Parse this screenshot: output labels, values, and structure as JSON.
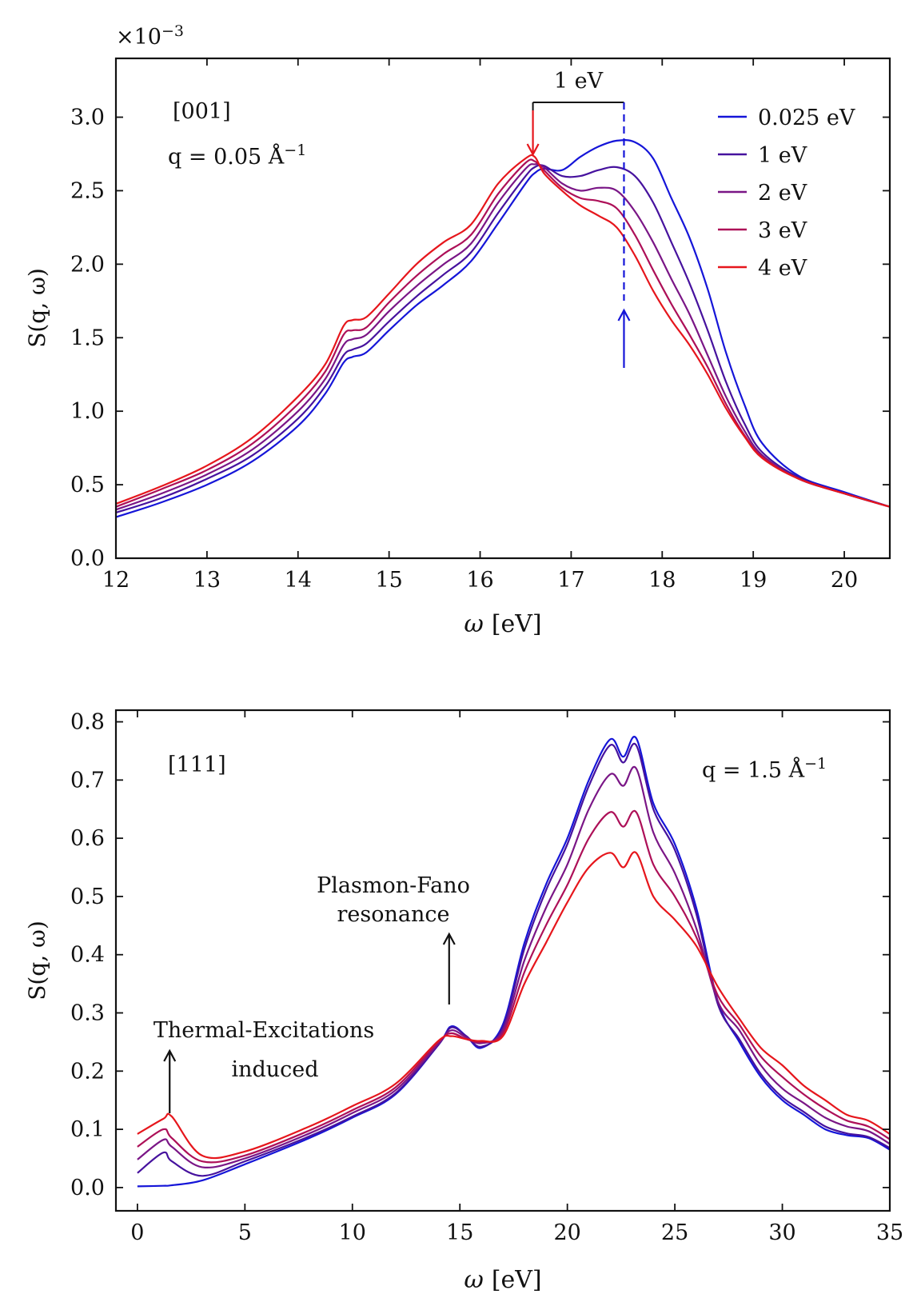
{
  "chart_data": [
    {
      "type": "line",
      "panel": "top",
      "annotation_direction": "[001]",
      "annotation_q": "q = 0.05 Å",
      "annotation_q_exp": "−1",
      "multiplier_base": "×10",
      "multiplier_exp": "−3",
      "shift_label": "1 eV",
      "xlabel_var": "ω",
      "xlabel_unit": "[eV]",
      "ylabel": "S(q, ω)",
      "xlim": [
        12,
        20.5
      ],
      "ylim": [
        0,
        3.4
      ],
      "xticks": [
        12,
        13,
        14,
        15,
        16,
        17,
        18,
        19,
        20
      ],
      "xtick_labels": [
        "12",
        "13",
        "14",
        "15",
        "16",
        "17",
        "18",
        "19",
        "20"
      ],
      "yticks": [
        0,
        0.5,
        1.0,
        1.5,
        2.0,
        2.5,
        3.0
      ],
      "ytick_labels": [
        "0.0",
        "0.5",
        "1.0",
        "1.5",
        "2.0",
        "2.5",
        "3.0"
      ],
      "legend": [
        "0.025 eV",
        "1 eV",
        "2 eV",
        "3 eV",
        "4 eV"
      ],
      "legend_position": "top-right",
      "arrow_red_x": 16.58,
      "arrow_blue_x": 17.58,
      "x": [
        12.0,
        12.5,
        13.0,
        13.5,
        14.0,
        14.3,
        14.5,
        14.6,
        14.75,
        15.0,
        15.3,
        15.6,
        15.9,
        16.2,
        16.5,
        16.6,
        16.7,
        16.9,
        17.1,
        17.3,
        17.5,
        17.7,
        17.9,
        18.1,
        18.3,
        18.5,
        18.7,
        18.9,
        19.1,
        19.5,
        20.0,
        20.5
      ],
      "series": [
        {
          "name": "0.025 eV",
          "color": "#1515d8",
          "values": [
            0.28,
            0.38,
            0.5,
            0.66,
            0.9,
            1.12,
            1.33,
            1.37,
            1.4,
            1.55,
            1.72,
            1.86,
            2.02,
            2.28,
            2.55,
            2.62,
            2.65,
            2.64,
            2.73,
            2.8,
            2.84,
            2.83,
            2.72,
            2.45,
            2.18,
            1.83,
            1.4,
            1.05,
            0.78,
            0.56,
            0.45,
            0.35
          ]
        },
        {
          "name": "1 eV",
          "color": "#46129e",
          "values": [
            0.31,
            0.41,
            0.54,
            0.7,
            0.95,
            1.17,
            1.38,
            1.42,
            1.46,
            1.61,
            1.78,
            1.93,
            2.08,
            2.35,
            2.6,
            2.66,
            2.67,
            2.6,
            2.6,
            2.64,
            2.66,
            2.6,
            2.42,
            2.15,
            1.87,
            1.55,
            1.2,
            0.92,
            0.72,
            0.55,
            0.44,
            0.35
          ]
        },
        {
          "name": "2 eV",
          "color": "#7a1686",
          "values": [
            0.33,
            0.44,
            0.57,
            0.74,
            1.0,
            1.22,
            1.45,
            1.49,
            1.52,
            1.68,
            1.85,
            2.0,
            2.14,
            2.42,
            2.65,
            2.68,
            2.66,
            2.55,
            2.5,
            2.52,
            2.5,
            2.36,
            2.15,
            1.9,
            1.66,
            1.38,
            1.1,
            0.87,
            0.7,
            0.54,
            0.44,
            0.35
          ]
        },
        {
          "name": "3 eV",
          "color": "#ad1058",
          "values": [
            0.35,
            0.47,
            0.6,
            0.78,
            1.05,
            1.27,
            1.52,
            1.55,
            1.57,
            1.74,
            1.92,
            2.07,
            2.2,
            2.48,
            2.69,
            2.7,
            2.64,
            2.52,
            2.45,
            2.43,
            2.38,
            2.2,
            1.96,
            1.73,
            1.52,
            1.3,
            1.05,
            0.84,
            0.69,
            0.54,
            0.44,
            0.35
          ]
        },
        {
          "name": "4 eV",
          "color": "#e6161c",
          "values": [
            0.37,
            0.49,
            0.63,
            0.82,
            1.1,
            1.32,
            1.58,
            1.62,
            1.64,
            1.8,
            2.0,
            2.15,
            2.27,
            2.55,
            2.72,
            2.73,
            2.62,
            2.5,
            2.4,
            2.33,
            2.25,
            2.06,
            1.82,
            1.62,
            1.45,
            1.25,
            1.02,
            0.83,
            0.68,
            0.54,
            0.44,
            0.35
          ]
        }
      ]
    },
    {
      "type": "line",
      "panel": "bottom",
      "annotation_direction": "[111]",
      "annotation_q": "q = 1.5 Å",
      "annotation_q_exp": "−1",
      "annotation_plasmon_line1": "Plasmon-Fano",
      "annotation_plasmon_line2": "resonance",
      "annotation_thermal_line1": "Thermal-Excitations",
      "annotation_thermal_line2": "induced",
      "xlabel_var": "ω",
      "xlabel_unit": "[eV]",
      "ylabel": "S(q, ω)",
      "xlim": [
        -1,
        35
      ],
      "ylim": [
        -0.04,
        0.82
      ],
      "xticks": [
        0,
        5,
        10,
        15,
        20,
        25,
        30,
        35
      ],
      "xtick_labels": [
        "0",
        "5",
        "10",
        "15",
        "20",
        "25",
        "30",
        "35"
      ],
      "yticks": [
        0.0,
        0.1,
        0.2,
        0.3,
        0.4,
        0.5,
        0.6,
        0.7,
        0.8
      ],
      "ytick_labels": [
        "0.0",
        "0.1",
        "0.2",
        "0.3",
        "0.4",
        "0.5",
        "0.6",
        "0.7",
        "0.8"
      ],
      "arrow_plasmon_x": 14.5,
      "arrow_thermal_x": 1.5,
      "x": [
        0,
        1.2,
        1.6,
        3,
        5,
        8,
        10,
        12,
        14,
        14.6,
        15.3,
        16,
        17,
        18,
        19,
        20,
        21,
        22,
        22.6,
        23.2,
        24,
        25,
        26,
        27,
        28,
        29,
        30,
        31,
        32,
        33,
        34,
        35
      ],
      "series": [
        {
          "name": "0.025 eV",
          "color": "#1515d8",
          "values": [
            0.002,
            0.003,
            0.004,
            0.012,
            0.04,
            0.085,
            0.12,
            0.16,
            0.245,
            0.277,
            0.26,
            0.24,
            0.28,
            0.42,
            0.52,
            0.6,
            0.7,
            0.77,
            0.74,
            0.772,
            0.66,
            0.59,
            0.48,
            0.32,
            0.25,
            0.19,
            0.15,
            0.125,
            0.1,
            0.09,
            0.085,
            0.065
          ]
        },
        {
          "name": "1 eV",
          "color": "#46129e",
          "values": [
            0.025,
            0.06,
            0.045,
            0.02,
            0.045,
            0.088,
            0.122,
            0.162,
            0.245,
            0.275,
            0.26,
            0.242,
            0.275,
            0.41,
            0.51,
            0.59,
            0.69,
            0.76,
            0.73,
            0.76,
            0.65,
            0.58,
            0.47,
            0.315,
            0.255,
            0.195,
            0.155,
            0.13,
            0.105,
            0.093,
            0.087,
            0.068
          ]
        },
        {
          "name": "2 eV",
          "color": "#7a1686",
          "values": [
            0.048,
            0.082,
            0.07,
            0.035,
            0.05,
            0.093,
            0.128,
            0.167,
            0.247,
            0.27,
            0.258,
            0.248,
            0.27,
            0.39,
            0.48,
            0.555,
            0.65,
            0.71,
            0.69,
            0.72,
            0.61,
            0.54,
            0.445,
            0.32,
            0.27,
            0.21,
            0.17,
            0.145,
            0.12,
            0.105,
            0.097,
            0.075
          ]
        },
        {
          "name": "3 eV",
          "color": "#ad1058",
          "values": [
            0.07,
            0.1,
            0.085,
            0.045,
            0.055,
            0.098,
            0.133,
            0.172,
            0.25,
            0.265,
            0.255,
            0.25,
            0.265,
            0.37,
            0.45,
            0.52,
            0.6,
            0.645,
            0.62,
            0.645,
            0.555,
            0.5,
            0.43,
            0.33,
            0.28,
            0.225,
            0.19,
            0.16,
            0.135,
            0.115,
            0.105,
            0.083
          ]
        },
        {
          "name": "4 eV",
          "color": "#e6161c",
          "values": [
            0.092,
            0.118,
            0.122,
            0.055,
            0.062,
            0.105,
            0.14,
            0.178,
            0.252,
            0.26,
            0.255,
            0.252,
            0.26,
            0.35,
            0.42,
            0.49,
            0.55,
            0.575,
            0.55,
            0.575,
            0.5,
            0.46,
            0.415,
            0.345,
            0.29,
            0.24,
            0.21,
            0.175,
            0.15,
            0.125,
            0.115,
            0.092
          ]
        }
      ]
    }
  ]
}
